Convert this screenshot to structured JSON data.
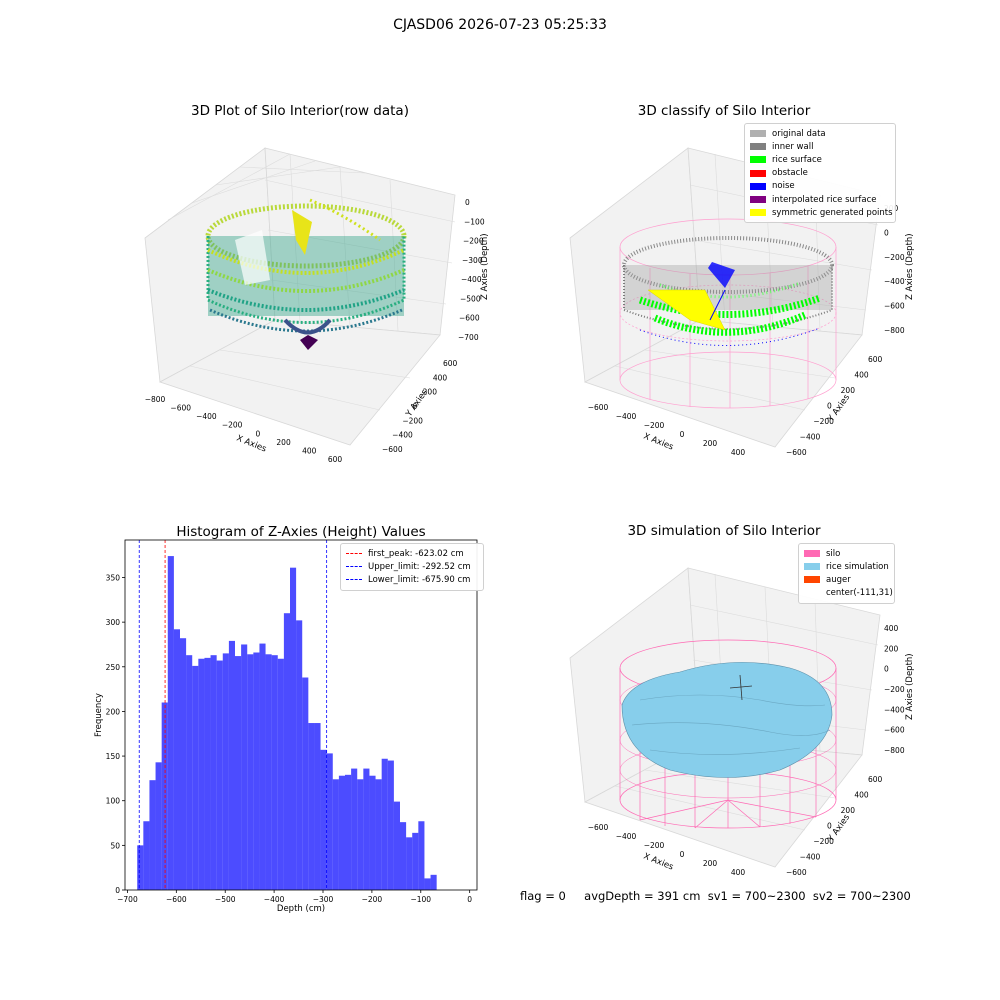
{
  "suptitle": "CJASD06 2026-07-23 05:25:33",
  "panels": {
    "raw": {
      "title": "3D Plot of Silo Interior(row data)",
      "xlabel": "X Axies",
      "ylabel": "Y Axies",
      "zlabel": "Z Axies (Depth)",
      "xticks": [
        "-800",
        "-600",
        "-400",
        "-200",
        "0",
        "200",
        "400",
        "600"
      ],
      "yticks": [
        "-600",
        "-400",
        "-200",
        "0",
        "200",
        "400",
        "600"
      ],
      "zticks": [
        "0",
        "-100",
        "-200",
        "-300",
        "-400",
        "-500",
        "-600",
        "-700"
      ]
    },
    "classify": {
      "title": "3D classify of Silo Interior",
      "xlabel": "X Axies",
      "ylabel": "Y Axies",
      "zlabel": "Z Axies (Depth)",
      "xticks": [
        "-600",
        "-400",
        "-200",
        "0",
        "200",
        "400"
      ],
      "yticks": [
        "-600",
        "-400",
        "-200",
        "0",
        "200",
        "400",
        "600"
      ],
      "zticks": [
        "200",
        "0",
        "-200",
        "-400",
        "-600",
        "-800"
      ],
      "legend": [
        {
          "label": "original data",
          "color": "#b0b0b0"
        },
        {
          "label": "inner wall",
          "color": "#808080"
        },
        {
          "label": "rice surface",
          "color": "#00ff00"
        },
        {
          "label": "obstacle",
          "color": "#ff0000"
        },
        {
          "label": "noise",
          "color": "#0000ff"
        },
        {
          "label": "interpolated rice surface",
          "color": "#800080"
        },
        {
          "label": "symmetric generated points",
          "color": "#ffff00"
        }
      ]
    },
    "simulation": {
      "title": "3D simulation of Silo Interior",
      "xlabel": "X Axies",
      "ylabel": "Y Axies",
      "zlabel": "Z Axies (Depth)",
      "xticks": [
        "-600",
        "-400",
        "-200",
        "0",
        "200",
        "400"
      ],
      "yticks": [
        "-600",
        "-400",
        "-200",
        "0",
        "200",
        "400",
        "600"
      ],
      "zticks": [
        "400",
        "200",
        "0",
        "-200",
        "-400",
        "-600",
        "-800"
      ],
      "legend": [
        {
          "label": "silo",
          "color": "#ff69b4"
        },
        {
          "label": "rice simulation",
          "color": "#87ceeb"
        },
        {
          "label": "auger",
          "color": "#ff4500"
        },
        {
          "label": "center(-111,31)",
          "color": ""
        }
      ]
    }
  },
  "footer": {
    "flag": "flag = 0",
    "avg": "avgDepth = 391 cm  sv1 = 700~2300  sv2 = 700~2300"
  },
  "chart_data": {
    "type": "bar",
    "title": "Histogram of Z-Axies (Height) Values",
    "xlabel": "Depth (cm)",
    "ylabel": "Frequency",
    "xlim": [
      -705,
      15
    ],
    "ylim": [
      0,
      392
    ],
    "xticks": [
      -700,
      -600,
      -500,
      -400,
      -300,
      -200,
      -100,
      0
    ],
    "yticks": [
      0,
      50,
      100,
      150,
      200,
      250,
      300,
      350
    ],
    "bin_start": -680,
    "bin_width": 12.5,
    "values": [
      50,
      77,
      123,
      143,
      210,
      374,
      292,
      282,
      263,
      251,
      259,
      260,
      263,
      257,
      265,
      279,
      262,
      275,
      264,
      266,
      276,
      264,
      263,
      259,
      310,
      361,
      302,
      238,
      187,
      187,
      157,
      153,
      124,
      128,
      129,
      136,
      124,
      136,
      128,
      124,
      147,
      145,
      99,
      76,
      59,
      64,
      77,
      13,
      17
    ],
    "color": "#0000ff",
    "vlines": [
      {
        "label": "first_peak: -623.02 cm",
        "x": -623.02,
        "color": "#ff0000"
      },
      {
        "label": "Upper_limit: -292.52 cm",
        "x": -292.52,
        "color": "#0000ff"
      },
      {
        "label": "Lower_limit: -675.90 cm",
        "x": -675.9,
        "color": "#0000ff"
      }
    ]
  }
}
